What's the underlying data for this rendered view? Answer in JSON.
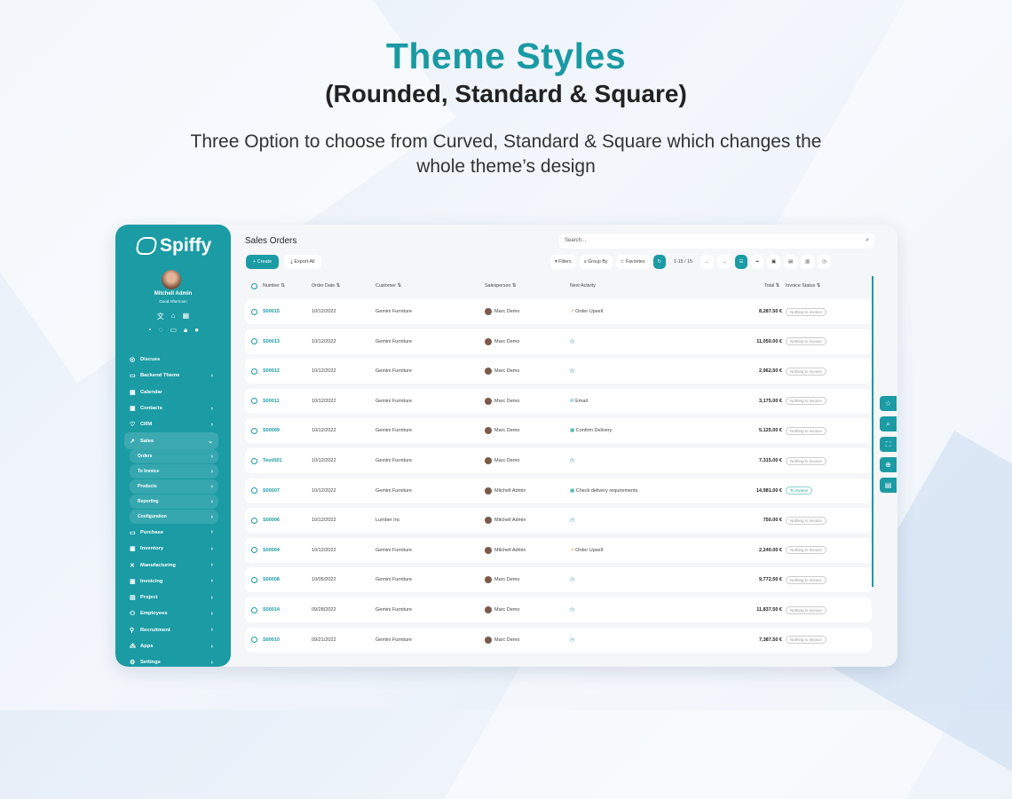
{
  "hero": {
    "title": "Theme Styles",
    "subtitle": "(Rounded, Standard & Square)",
    "description": "Three Option to choose from Curved, Standard & Square which changes the whole theme’s design"
  },
  "colors": {
    "accent": "#1b9ba4"
  },
  "sidebar": {
    "brand": "Spiffy",
    "user": "Mitchell Admin",
    "greeting": "Good Afternoon",
    "items": [
      {
        "label": "Discuss",
        "icon": "chat-icon",
        "chevron": false
      },
      {
        "label": "Backend Theme",
        "icon": "paint-roller-icon",
        "chevron": true
      },
      {
        "label": "Calendar",
        "icon": "calendar-icon",
        "chevron": false
      },
      {
        "label": "Contacts",
        "icon": "contacts-icon",
        "chevron": true
      },
      {
        "label": "CRM",
        "icon": "handshake-icon",
        "chevron": true
      },
      {
        "label": "Sales",
        "icon": "chart-icon",
        "chevron": true,
        "active": true
      }
    ],
    "sales_sub": [
      "Orders",
      "To Invoice",
      "Products",
      "Reporting",
      "Configuration"
    ],
    "items2": [
      {
        "label": "Purchase",
        "icon": "card-icon"
      },
      {
        "label": "Inventory",
        "icon": "box-icon"
      },
      {
        "label": "Manufacturing",
        "icon": "tools-icon"
      },
      {
        "label": "Invoicing",
        "icon": "invoice-icon"
      },
      {
        "label": "Project",
        "icon": "folder-icon"
      },
      {
        "label": "Employees",
        "icon": "users-icon"
      },
      {
        "label": "Recruitment",
        "icon": "user-plus-icon"
      },
      {
        "label": "Apps",
        "icon": "apps-icon"
      },
      {
        "label": "Settings",
        "icon": "gear-icon"
      }
    ]
  },
  "main": {
    "title": "Sales Orders",
    "search_placeholder": "Search...",
    "create": "+ Create",
    "export": "Export All",
    "filters": "Filters",
    "group_by": "Group By",
    "favorites": "Favorites",
    "pager": "1-15 / 15"
  },
  "columns": {
    "number": "Number",
    "order_date": "Order Date",
    "customer": "Customer",
    "salesperson": "Salesperson",
    "next_activity": "Next Activity",
    "total": "Total",
    "invoice_status": "Invoice Status"
  },
  "rows": [
    {
      "number": "S00015",
      "date": "10/12/2022",
      "customer": "Gemini Furniture",
      "salesperson": "Marc Demo",
      "activity": "Order Upsell",
      "activity_icon": "chart-up-icon",
      "total": "8,287.50 €",
      "status": "Nothing to invoice"
    },
    {
      "number": "S00013",
      "date": "10/12/2022",
      "customer": "Gemini Furniture",
      "salesperson": "Marc Demo",
      "activity": "",
      "activity_icon": "clock-icon",
      "total": "11,050.00 €",
      "status": "Nothing to invoice"
    },
    {
      "number": "S00012",
      "date": "10/12/2022",
      "customer": "Gemini Furniture",
      "salesperson": "Marc Demo",
      "activity": "",
      "activity_icon": "clock-icon",
      "total": "2,962.50 €",
      "status": "Nothing to invoice"
    },
    {
      "number": "S00011",
      "date": "10/12/2022",
      "customer": "Gemini Furniture",
      "salesperson": "Marc Demo",
      "activity": "Email",
      "activity_icon": "email-icon",
      "total": "3,175.00 €",
      "status": "Nothing to invoice"
    },
    {
      "number": "S00009",
      "date": "10/12/2022",
      "customer": "Gemini Furniture",
      "salesperson": "Marc Demo",
      "activity": "Confirm Delivery",
      "activity_icon": "calendar-icon",
      "total": "5,125.00 €",
      "status": "Nothing to invoice"
    },
    {
      "number": "Test/001",
      "date": "10/12/2022",
      "customer": "Gemini Furniture",
      "salesperson": "Marc Demo",
      "activity": "",
      "activity_icon": "clock-icon",
      "total": "7,315.00 €",
      "status": "Nothing to invoice"
    },
    {
      "number": "S00007",
      "date": "10/12/2022",
      "customer": "Gemini Furniture",
      "salesperson": "Mitchell Admin",
      "activity": "Check delivery requirements",
      "activity_icon": "calendar-icon",
      "total": "14,981.00 €",
      "status": "To invoice"
    },
    {
      "number": "S00006",
      "date": "10/12/2022",
      "customer": "Lumber Inc",
      "salesperson": "Mitchell Admin",
      "activity": "",
      "activity_icon": "clock-icon",
      "total": "750.00 €",
      "status": "Nothing to invoice"
    },
    {
      "number": "S00004",
      "date": "10/12/2022",
      "customer": "Gemini Furniture",
      "salesperson": "Mitchell Admin",
      "activity": "Order Upsell",
      "activity_icon": "chart-up-icon",
      "total": "2,240.00 €",
      "status": "Nothing to invoice"
    },
    {
      "number": "S00008",
      "date": "10/05/2022",
      "customer": "Gemini Furniture",
      "salesperson": "Marc Demo",
      "activity": "",
      "activity_icon": "clock-icon",
      "total": "9,772.50 €",
      "status": "Nothing to invoice"
    },
    {
      "number": "S00014",
      "date": "09/28/2022",
      "customer": "Gemini Furniture",
      "salesperson": "Marc Demo",
      "activity": "",
      "activity_icon": "clock-icon",
      "total": "11,837.50 €",
      "status": "Nothing to invoice"
    },
    {
      "number": "S00010",
      "date": "09/21/2022",
      "customer": "Gemini Furniture",
      "salesperson": "Marc Demo",
      "activity": "",
      "activity_icon": "clock-icon",
      "total": "7,387.50 €",
      "status": "Nothing to invoice"
    }
  ]
}
